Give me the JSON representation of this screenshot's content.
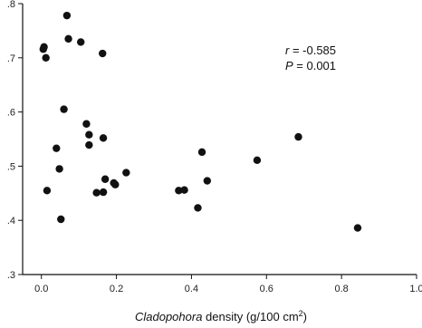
{
  "chart_data": {
    "type": "scatter",
    "xlabel": {
      "italic_part": "Cladopohora",
      "rest": " density (g/100 cm",
      "superscript": "2",
      "close": ")"
    },
    "ylabel": "",
    "xlim": [
      -0.05,
      1.0
    ],
    "ylim": [
      0.3,
      0.8
    ],
    "x_ticks": [
      {
        "value": 0.0,
        "label": "0.0"
      },
      {
        "value": 0.2,
        "label": "0.2"
      },
      {
        "value": 0.4,
        "label": "0.4"
      },
      {
        "value": 0.6,
        "label": "0.6"
      },
      {
        "value": 0.8,
        "label": "0.8"
      },
      {
        "value": 1.0,
        "label": "1.0"
      }
    ],
    "y_ticks": [
      {
        "value": 0.3,
        "label": ".3"
      },
      {
        "value": 0.4,
        "label": ".4"
      },
      {
        "value": 0.5,
        "label": ".5"
      },
      {
        "value": 0.6,
        "label": ".6"
      },
      {
        "value": 0.7,
        "label": ".7"
      },
      {
        "value": 0.8,
        "label": ".8"
      }
    ],
    "annotation": {
      "r_label": "r",
      "r_value": " = -0.585",
      "p_label": "P",
      "p_value": " = 0.001"
    },
    "points": [
      {
        "x": 0.005,
        "y": 0.716
      },
      {
        "x": 0.007,
        "y": 0.72
      },
      {
        "x": 0.012,
        "y": 0.7
      },
      {
        "x": 0.068,
        "y": 0.778
      },
      {
        "x": 0.072,
        "y": 0.735
      },
      {
        "x": 0.105,
        "y": 0.729
      },
      {
        "x": 0.163,
        "y": 0.708
      },
      {
        "x": 0.06,
        "y": 0.605
      },
      {
        "x": 0.12,
        "y": 0.578
      },
      {
        "x": 0.127,
        "y": 0.558
      },
      {
        "x": 0.127,
        "y": 0.539
      },
      {
        "x": 0.165,
        "y": 0.552
      },
      {
        "x": 0.04,
        "y": 0.533
      },
      {
        "x": 0.048,
        "y": 0.495
      },
      {
        "x": 0.015,
        "y": 0.455
      },
      {
        "x": 0.052,
        "y": 0.402
      },
      {
        "x": 0.147,
        "y": 0.451
      },
      {
        "x": 0.165,
        "y": 0.452
      },
      {
        "x": 0.17,
        "y": 0.476
      },
      {
        "x": 0.193,
        "y": 0.469
      },
      {
        "x": 0.197,
        "y": 0.466
      },
      {
        "x": 0.226,
        "y": 0.488
      },
      {
        "x": 0.366,
        "y": 0.455
      },
      {
        "x": 0.381,
        "y": 0.456
      },
      {
        "x": 0.417,
        "y": 0.423
      },
      {
        "x": 0.428,
        "y": 0.526
      },
      {
        "x": 0.442,
        "y": 0.473
      },
      {
        "x": 0.575,
        "y": 0.511
      },
      {
        "x": 0.685,
        "y": 0.554
      },
      {
        "x": 0.843,
        "y": 0.386
      }
    ],
    "grid": false,
    "legend": "none",
    "colors": {
      "marker": "#111111",
      "axis": "#111111",
      "background": "#ffffff"
    }
  }
}
